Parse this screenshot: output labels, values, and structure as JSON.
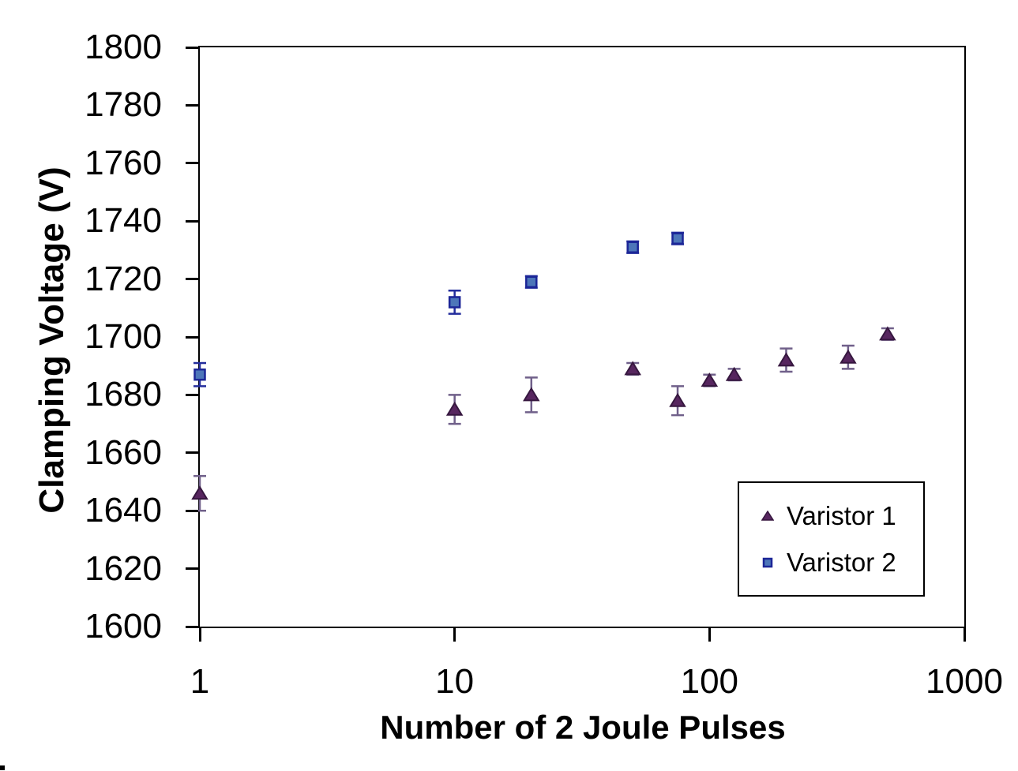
{
  "chart_data": {
    "type": "scatter",
    "title": "",
    "xlabel": "Number of 2 Joule Pulses",
    "ylabel": "Clamping Voltage (V)",
    "x_scale": "log",
    "xlim": [
      1,
      1000
    ],
    "ylim": [
      1600,
      1800
    ],
    "x_ticks": [
      1,
      10,
      100,
      1000
    ],
    "y_ticks": [
      1600,
      1620,
      1640,
      1660,
      1680,
      1700,
      1720,
      1740,
      1760,
      1780,
      1800
    ],
    "grid": false,
    "error_bars": true,
    "legend_position": "inside-bottom-right",
    "series": [
      {
        "name": "Varistor 1",
        "marker": "triangle",
        "marker_fill": "#57265f",
        "marker_outline": "#36173f",
        "error_bar_color": "#70608a",
        "points": [
          {
            "x": 1,
            "y": 1646,
            "err": 6
          },
          {
            "x": 10,
            "y": 1675,
            "err": 5
          },
          {
            "x": 20,
            "y": 1680,
            "err": 6
          },
          {
            "x": 50,
            "y": 1689,
            "err": 2
          },
          {
            "x": 75,
            "y": 1678,
            "err": 5
          },
          {
            "x": 100,
            "y": 1685,
            "err": 2
          },
          {
            "x": 125,
            "y": 1687,
            "err": 2
          },
          {
            "x": 200,
            "y": 1692,
            "err": 4
          },
          {
            "x": 350,
            "y": 1693,
            "err": 4
          },
          {
            "x": 500,
            "y": 1701,
            "err": 2
          }
        ]
      },
      {
        "name": "Varistor 2",
        "marker": "square",
        "marker_fill": "#4d76b9",
        "marker_outline": "#1c2697",
        "error_bar_color": "#232d9c",
        "points": [
          {
            "x": 1,
            "y": 1687,
            "err": 4
          },
          {
            "x": 10,
            "y": 1712,
            "err": 4
          },
          {
            "x": 20,
            "y": 1719,
            "err": 2
          },
          {
            "x": 50,
            "y": 1731,
            "err": 2
          },
          {
            "x": 75,
            "y": 1734,
            "err": 2
          }
        ]
      }
    ]
  }
}
